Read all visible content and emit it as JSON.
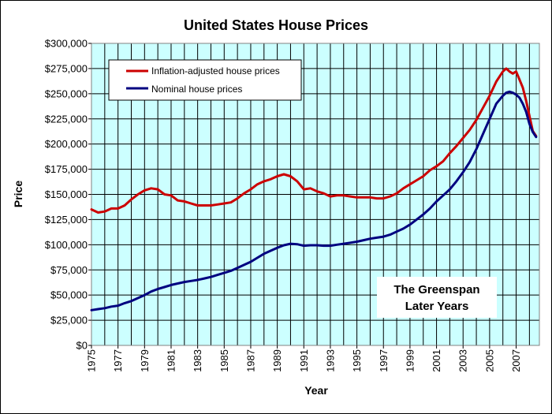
{
  "chart_data": {
    "type": "line",
    "title": "United States House Prices",
    "xlabel": "Year",
    "ylabel": "Price",
    "xlim": [
      1975,
      2008.75
    ],
    "ylim": [
      0,
      300000
    ],
    "y_tick_values": [
      0,
      25000,
      50000,
      75000,
      100000,
      125000,
      150000,
      175000,
      200000,
      225000,
      250000,
      275000,
      300000
    ],
    "y_tick_labels": [
      "$0",
      "$25,000",
      "$50,000",
      "$75,000",
      "$100,000",
      "$125,000",
      "$150,000",
      "$175,000",
      "$200,000",
      "$225,000",
      "$250,000",
      "$275,000",
      "$300,000"
    ],
    "x_tick_labels": [
      "1975",
      "1977",
      "1979",
      "1981",
      "1983",
      "1985",
      "1987",
      "1989",
      "1991",
      "1993",
      "1995",
      "1997",
      "1999",
      "2001",
      "2003",
      "2005",
      "2007"
    ],
    "grid": true,
    "legend_position": "top-left",
    "series": [
      {
        "name": "Inflation-adjusted house prices",
        "color": "#cc0000",
        "x": [
          1975,
          1975.5,
          1976,
          1976.5,
          1977,
          1977.5,
          1978,
          1978.5,
          1979,
          1979.5,
          1980,
          1980.5,
          1981,
          1981.5,
          1982,
          1982.5,
          1983,
          1983.5,
          1984,
          1984.5,
          1985,
          1985.5,
          1986,
          1986.5,
          1987,
          1987.5,
          1988,
          1988.5,
          1989,
          1989.5,
          1990,
          1990.5,
          1991,
          1991.5,
          1992,
          1992.5,
          1993,
          1993.5,
          1994,
          1994.5,
          1995,
          1995.5,
          1996,
          1996.5,
          1997,
          1997.5,
          1998,
          1998.5,
          1999,
          1999.5,
          2000,
          2000.5,
          2001,
          2001.5,
          2002,
          2002.5,
          2003,
          2003.5,
          2004,
          2004.5,
          2005,
          2005.5,
          2006,
          2006.25,
          2006.5,
          2006.75,
          2007,
          2007.25,
          2007.5,
          2007.75,
          2008,
          2008.25,
          2008.5
        ],
        "values": [
          135000,
          132000,
          133000,
          136000,
          136000,
          139000,
          145000,
          150000,
          154000,
          156000,
          155000,
          150000,
          149000,
          144000,
          143000,
          141000,
          139000,
          139000,
          139000,
          140000,
          141000,
          142000,
          146000,
          151000,
          155000,
          160000,
          163000,
          165000,
          168000,
          170000,
          168000,
          163000,
          155000,
          156000,
          153000,
          151000,
          148000,
          149000,
          149000,
          148000,
          147000,
          147000,
          147000,
          146000,
          146000,
          148000,
          151000,
          156000,
          160000,
          164000,
          168000,
          174000,
          178000,
          183000,
          191000,
          198000,
          206000,
          214000,
          224000,
          236000,
          248000,
          262000,
          272000,
          275000,
          272000,
          270000,
          272000,
          264000,
          256000,
          243000,
          228000,
          213000,
          208000
        ]
      },
      {
        "name": "Nominal house prices",
        "color": "#000080",
        "x": [
          1975,
          1975.5,
          1976,
          1976.5,
          1977,
          1977.5,
          1978,
          1978.5,
          1979,
          1979.5,
          1980,
          1980.5,
          1981,
          1981.5,
          1982,
          1982.5,
          1983,
          1983.5,
          1984,
          1984.5,
          1985,
          1985.5,
          1986,
          1986.5,
          1987,
          1987.5,
          1988,
          1988.5,
          1989,
          1989.5,
          1990,
          1990.5,
          1991,
          1991.5,
          1992,
          1992.5,
          1993,
          1993.5,
          1994,
          1994.5,
          1995,
          1995.5,
          1996,
          1996.5,
          1997,
          1997.5,
          1998,
          1998.5,
          1999,
          1999.5,
          2000,
          2000.5,
          2001,
          2001.5,
          2002,
          2002.5,
          2003,
          2003.5,
          2004,
          2004.5,
          2005,
          2005.5,
          2006,
          2006.25,
          2006.5,
          2006.75,
          2007,
          2007.25,
          2007.5,
          2007.75,
          2008,
          2008.25,
          2008.5
        ],
        "values": [
          35000,
          36000,
          37000,
          38500,
          39500,
          42000,
          44000,
          47000,
          50000,
          53500,
          56000,
          58000,
          60000,
          61500,
          63000,
          64000,
          65000,
          66500,
          68000,
          70000,
          72000,
          74000,
          77000,
          80000,
          83000,
          87000,
          91000,
          94000,
          97000,
          99500,
          101000,
          100500,
          99000,
          99500,
          99500,
          99000,
          99000,
          100000,
          101000,
          102000,
          103000,
          104500,
          106000,
          107000,
          108000,
          110000,
          113000,
          116000,
          120000,
          125000,
          130000,
          136000,
          143000,
          149000,
          155000,
          163000,
          172000,
          182000,
          195000,
          210000,
          225000,
          240000,
          248000,
          251000,
          252000,
          251000,
          249000,
          246000,
          240000,
          232000,
          220000,
          212000,
          207000
        ]
      }
    ],
    "annotation": {
      "line1": "The Greenspan",
      "line2": "Later Years"
    }
  }
}
